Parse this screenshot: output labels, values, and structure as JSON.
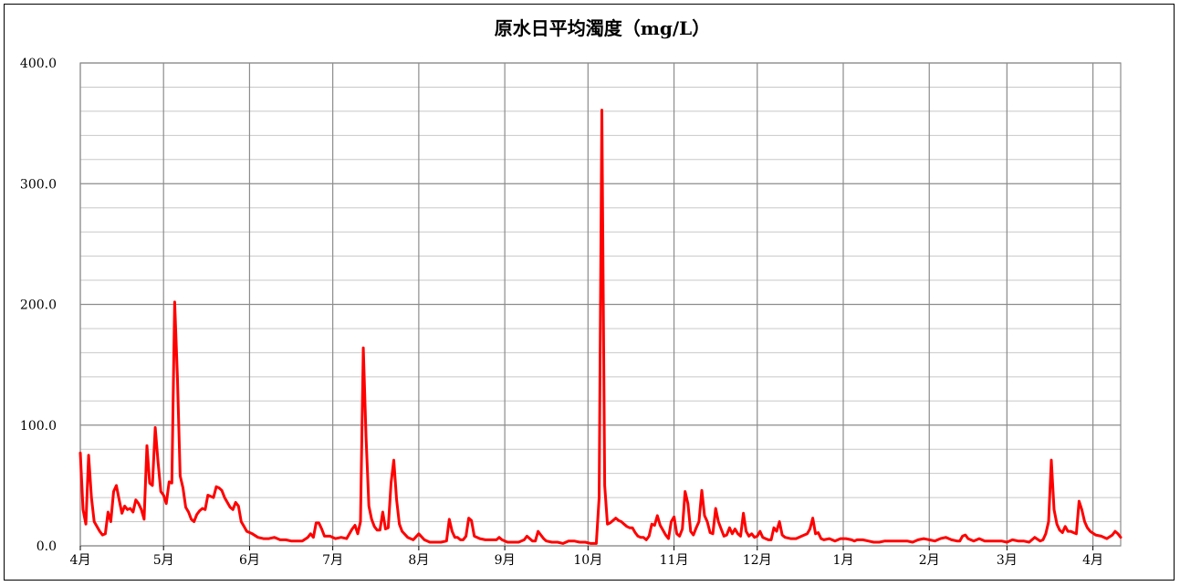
{
  "chart_data": {
    "type": "line",
    "title": "原水日平均濁度（mg/L）",
    "xlabel": "",
    "ylabel": "",
    "ylim": [
      0,
      400
    ],
    "y_ticks": [
      "0.0",
      "100.0",
      "200.0",
      "300.0",
      "400.0"
    ],
    "x_tick_labels": [
      "4月",
      "5月",
      "6月",
      "7月",
      "8月",
      "9月",
      "10月",
      "11月",
      "12月",
      "1月",
      "2月",
      "3月",
      "4月"
    ],
    "x_range_days": [
      0,
      365
    ],
    "grid": true,
    "legend": "none",
    "series_color": "#ff0000",
    "series": [
      {
        "points": [
          [
            0,
            77
          ],
          [
            1,
            30
          ],
          [
            2,
            18
          ],
          [
            3,
            75
          ],
          [
            4,
            40
          ],
          [
            5,
            20
          ],
          [
            7,
            12
          ],
          [
            8,
            9
          ],
          [
            9,
            10
          ],
          [
            10,
            28
          ],
          [
            11,
            20
          ],
          [
            12,
            45
          ],
          [
            13,
            50
          ],
          [
            14,
            38
          ],
          [
            15,
            27
          ],
          [
            16,
            33
          ],
          [
            17,
            30
          ],
          [
            18,
            31
          ],
          [
            19,
            28
          ],
          [
            20,
            38
          ],
          [
            21,
            35
          ],
          [
            22,
            30
          ],
          [
            23,
            22
          ],
          [
            24,
            83
          ],
          [
            25,
            52
          ],
          [
            26,
            50
          ],
          [
            27,
            98
          ],
          [
            28,
            70
          ],
          [
            29,
            45
          ],
          [
            30,
            42
          ],
          [
            31,
            35
          ],
          [
            32,
            53
          ],
          [
            33,
            52
          ],
          [
            34,
            202
          ],
          [
            35,
            140
          ],
          [
            36,
            58
          ],
          [
            37,
            48
          ],
          [
            38,
            32
          ],
          [
            39,
            28
          ],
          [
            40,
            22
          ],
          [
            41,
            20
          ],
          [
            42,
            26
          ],
          [
            43,
            29
          ],
          [
            44,
            31
          ],
          [
            45,
            30
          ],
          [
            46,
            42
          ],
          [
            47,
            41
          ],
          [
            48,
            40
          ],
          [
            49,
            49
          ],
          [
            50,
            48
          ],
          [
            51,
            46
          ],
          [
            52,
            40
          ],
          [
            53,
            36
          ],
          [
            54,
            32
          ],
          [
            55,
            30
          ],
          [
            56,
            36
          ],
          [
            57,
            33
          ],
          [
            58,
            20
          ],
          [
            59,
            16
          ],
          [
            60,
            12
          ],
          [
            62,
            10
          ],
          [
            64,
            7
          ],
          [
            66,
            6
          ],
          [
            68,
            6
          ],
          [
            70,
            7
          ],
          [
            72,
            5
          ],
          [
            74,
            5
          ],
          [
            76,
            4
          ],
          [
            78,
            4
          ],
          [
            80,
            4
          ],
          [
            82,
            7
          ],
          [
            83,
            10
          ],
          [
            84,
            7
          ],
          [
            85,
            19
          ],
          [
            86,
            19
          ],
          [
            87,
            14
          ],
          [
            88,
            8
          ],
          [
            90,
            8
          ],
          [
            92,
            6
          ],
          [
            94,
            7
          ],
          [
            96,
            6
          ],
          [
            98,
            14
          ],
          [
            99,
            17
          ],
          [
            100,
            10
          ],
          [
            101,
            20
          ],
          [
            102,
            164
          ],
          [
            103,
            90
          ],
          [
            104,
            33
          ],
          [
            105,
            22
          ],
          [
            106,
            16
          ],
          [
            107,
            13
          ],
          [
            108,
            13
          ],
          [
            109,
            28
          ],
          [
            110,
            14
          ],
          [
            111,
            15
          ],
          [
            112,
            52
          ],
          [
            113,
            71
          ],
          [
            114,
            38
          ],
          [
            115,
            18
          ],
          [
            116,
            12
          ],
          [
            118,
            7
          ],
          [
            120,
            5
          ],
          [
            122,
            10
          ],
          [
            124,
            5
          ],
          [
            126,
            3
          ],
          [
            128,
            3
          ],
          [
            130,
            3
          ],
          [
            132,
            4
          ],
          [
            133,
            22
          ],
          [
            134,
            12
          ],
          [
            135,
            7
          ],
          [
            136,
            7
          ],
          [
            137,
            5
          ],
          [
            138,
            5
          ],
          [
            139,
            8
          ],
          [
            140,
            23
          ],
          [
            141,
            21
          ],
          [
            142,
            8
          ],
          [
            144,
            6
          ],
          [
            146,
            5
          ],
          [
            148,
            5
          ],
          [
            150,
            5
          ],
          [
            151,
            7
          ],
          [
            152,
            5
          ],
          [
            154,
            3
          ],
          [
            156,
            3
          ],
          [
            158,
            3
          ],
          [
            160,
            5
          ],
          [
            161,
            8
          ],
          [
            162,
            6
          ],
          [
            163,
            4
          ],
          [
            164,
            4
          ],
          [
            165,
            12
          ],
          [
            166,
            9
          ],
          [
            167,
            6
          ],
          [
            168,
            4
          ],
          [
            170,
            3
          ],
          [
            172,
            3
          ],
          [
            174,
            2
          ],
          [
            176,
            4
          ],
          [
            178,
            4
          ],
          [
            180,
            3
          ],
          [
            182,
            3
          ],
          [
            184,
            2
          ],
          [
            186,
            2
          ],
          [
            187,
            40
          ],
          [
            188,
            361
          ],
          [
            189,
            50
          ],
          [
            190,
            18
          ],
          [
            191,
            19
          ],
          [
            192,
            21
          ],
          [
            193,
            23
          ],
          [
            194,
            21
          ],
          [
            195,
            20
          ],
          [
            196,
            18
          ],
          [
            197,
            16
          ],
          [
            198,
            15
          ],
          [
            199,
            15
          ],
          [
            200,
            11
          ],
          [
            201,
            8
          ],
          [
            202,
            7
          ],
          [
            203,
            7
          ],
          [
            204,
            5
          ],
          [
            205,
            8
          ],
          [
            206,
            18
          ],
          [
            207,
            17
          ],
          [
            208,
            25
          ],
          [
            209,
            17
          ],
          [
            210,
            13
          ],
          [
            211,
            9
          ],
          [
            212,
            6
          ],
          [
            213,
            20
          ],
          [
            214,
            24
          ],
          [
            215,
            10
          ],
          [
            216,
            8
          ],
          [
            217,
            14
          ],
          [
            218,
            45
          ],
          [
            219,
            35
          ],
          [
            220,
            12
          ],
          [
            221,
            9
          ],
          [
            222,
            15
          ],
          [
            223,
            20
          ],
          [
            224,
            46
          ],
          [
            225,
            25
          ],
          [
            226,
            20
          ],
          [
            227,
            11
          ],
          [
            228,
            10
          ],
          [
            229,
            31
          ],
          [
            230,
            20
          ],
          [
            231,
            14
          ],
          [
            232,
            8
          ],
          [
            233,
            9
          ],
          [
            234,
            15
          ],
          [
            235,
            10
          ],
          [
            236,
            14
          ],
          [
            237,
            10
          ],
          [
            238,
            8
          ],
          [
            239,
            27
          ],
          [
            240,
            12
          ],
          [
            241,
            8
          ],
          [
            242,
            10
          ],
          [
            243,
            7
          ],
          [
            244,
            8
          ],
          [
            245,
            12
          ],
          [
            246,
            7
          ],
          [
            247,
            6
          ],
          [
            248,
            5
          ],
          [
            249,
            5
          ],
          [
            250,
            15
          ],
          [
            251,
            12
          ],
          [
            252,
            20
          ],
          [
            253,
            9
          ],
          [
            254,
            7
          ],
          [
            256,
            6
          ],
          [
            258,
            6
          ],
          [
            260,
            8
          ],
          [
            262,
            10
          ],
          [
            263,
            14
          ],
          [
            264,
            23
          ],
          [
            265,
            10
          ],
          [
            266,
            11
          ],
          [
            267,
            6
          ],
          [
            268,
            5
          ],
          [
            270,
            6
          ],
          [
            272,
            4
          ],
          [
            274,
            6
          ],
          [
            276,
            6
          ],
          [
            278,
            5
          ],
          [
            279,
            4
          ],
          [
            280,
            5
          ],
          [
            282,
            5
          ],
          [
            284,
            4
          ],
          [
            286,
            3
          ],
          [
            288,
            3
          ],
          [
            290,
            4
          ],
          [
            292,
            4
          ],
          [
            294,
            4
          ],
          [
            296,
            4
          ],
          [
            298,
            4
          ],
          [
            300,
            3
          ],
          [
            302,
            5
          ],
          [
            304,
            6
          ],
          [
            306,
            5
          ],
          [
            308,
            4
          ],
          [
            310,
            6
          ],
          [
            312,
            7
          ],
          [
            314,
            5
          ],
          [
            316,
            4
          ],
          [
            317,
            4
          ],
          [
            318,
            8
          ],
          [
            319,
            9
          ],
          [
            320,
            6
          ],
          [
            322,
            4
          ],
          [
            324,
            6
          ],
          [
            326,
            4
          ],
          [
            328,
            4
          ],
          [
            330,
            4
          ],
          [
            332,
            4
          ],
          [
            334,
            3
          ],
          [
            336,
            5
          ],
          [
            338,
            4
          ],
          [
            340,
            4
          ],
          [
            342,
            3
          ],
          [
            344,
            7
          ],
          [
            346,
            4
          ],
          [
            347,
            5
          ],
          [
            348,
            10
          ],
          [
            349,
            20
          ],
          [
            350,
            71
          ],
          [
            351,
            30
          ],
          [
            352,
            18
          ],
          [
            353,
            13
          ],
          [
            354,
            11
          ],
          [
            355,
            16
          ],
          [
            356,
            12
          ],
          [
            357,
            12
          ],
          [
            358,
            11
          ],
          [
            359,
            10
          ],
          [
            360,
            37
          ],
          [
            361,
            30
          ],
          [
            362,
            20
          ],
          [
            363,
            15
          ],
          [
            364,
            12
          ],
          [
            366,
            9
          ],
          [
            368,
            8
          ],
          [
            370,
            6
          ],
          [
            372,
            9
          ],
          [
            373,
            12
          ],
          [
            374,
            10
          ],
          [
            375,
            7
          ]
        ]
      }
    ]
  }
}
